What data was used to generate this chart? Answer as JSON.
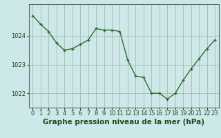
{
  "x": [
    0,
    1,
    2,
    3,
    4,
    5,
    6,
    7,
    8,
    9,
    10,
    11,
    12,
    13,
    14,
    15,
    16,
    17,
    18,
    19,
    20,
    21,
    22,
    23
  ],
  "y": [
    1024.7,
    1024.4,
    1024.15,
    1023.75,
    1023.5,
    1023.55,
    1023.7,
    1023.85,
    1024.25,
    1024.2,
    1024.2,
    1024.15,
    1023.15,
    1022.6,
    1022.55,
    1022.0,
    1022.0,
    1021.8,
    1022.0,
    1022.45,
    1022.85,
    1023.2,
    1023.55,
    1023.85
  ],
  "line_color": "#2d6a2d",
  "marker": "+",
  "marker_size": 3,
  "bg_color": "#cce8e8",
  "grid_color": "#aaaaaa",
  "xlabel": "Graphe pression niveau de la mer (hPa)",
  "xlabel_color": "#1a4a1a",
  "tick_color": "#1a4a1a",
  "ylim": [
    1021.5,
    1025.1
  ],
  "yticks": [
    1022,
    1023,
    1024
  ],
  "xlim": [
    -0.5,
    23.5
  ],
  "xticks": [
    0,
    1,
    2,
    3,
    4,
    5,
    6,
    7,
    8,
    9,
    10,
    11,
    12,
    13,
    14,
    15,
    16,
    17,
    18,
    19,
    20,
    21,
    22,
    23
  ],
  "xtick_labels": [
    "0",
    "1",
    "2",
    "3",
    "4",
    "5",
    "6",
    "7",
    "8",
    "9",
    "10",
    "11",
    "12",
    "13",
    "14",
    "15",
    "16",
    "17",
    "18",
    "19",
    "20",
    "21",
    "22",
    "23"
  ],
  "linewidth": 1.0,
  "font_size": 6.0,
  "xlabel_fontsize": 7.5
}
